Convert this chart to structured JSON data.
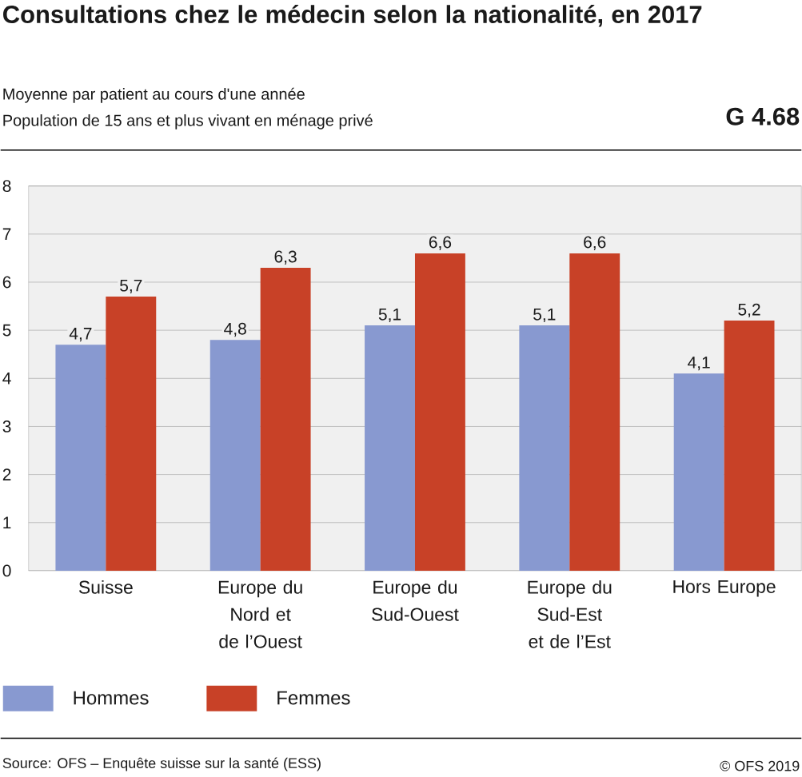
{
  "chart_data": {
    "type": "bar",
    "title": "Consultations chez le médecin selon la nationalité, en 2017",
    "subtitle": "Moyenne par patient au cours d'une année",
    "annotations": [
      "Population de 15 ans et plus vivant en ménage privé",
      "G 4.68",
      "Source: OFS – Enquête suisse sur la santé (ESS)",
      "© OFS 2019"
    ],
    "categories": [
      "Suisse",
      "Europe du Nord et de l’Ouest",
      "Europe du Sud-Ouest",
      "Europe du Sud-Est et de l’Est",
      "Hors Europe"
    ],
    "series": [
      {
        "name": "Hommes",
        "color": "#8899d0",
        "values": [
          4.7,
          4.8,
          5.1,
          5.1,
          4.1
        ],
        "value_labels": [
          "4,7",
          "4,8",
          "5,1",
          "5,1",
          "4,1"
        ]
      },
      {
        "name": "Femmes",
        "color": "#c84127",
        "values": [
          5.7,
          6.3,
          6.6,
          6.6,
          5.2
        ],
        "value_labels": [
          "5,7",
          "6,3",
          "6,6",
          "6,6",
          "5,2"
        ]
      }
    ],
    "ylim": [
      0,
      8
    ],
    "yticks": [
      0,
      1,
      2,
      3,
      4,
      5,
      6,
      7,
      8
    ],
    "grid": "y",
    "legend": "bottom"
  }
}
